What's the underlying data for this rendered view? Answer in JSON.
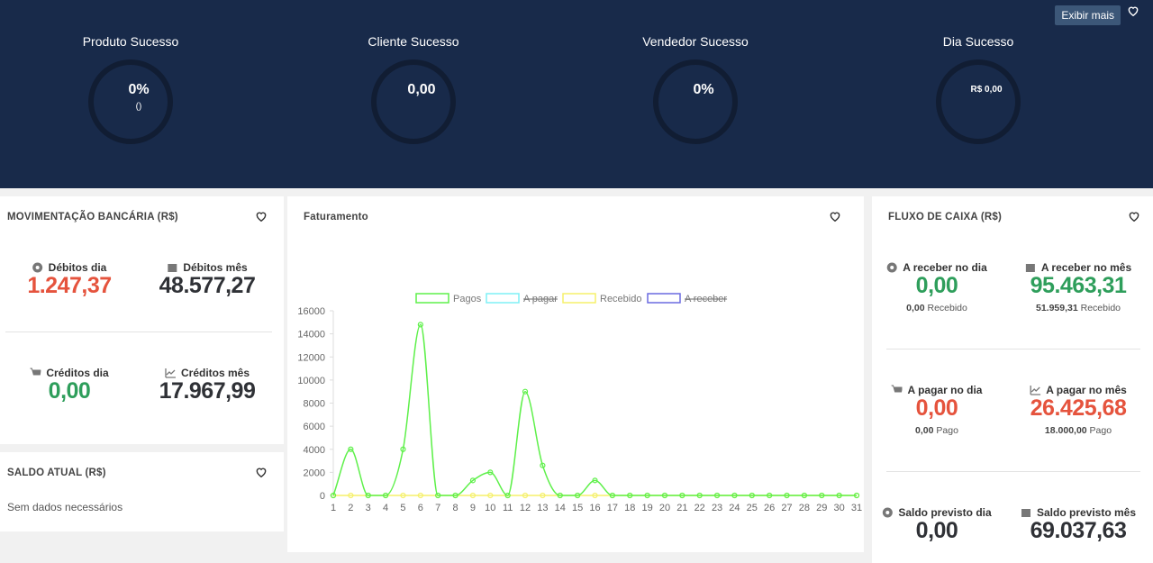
{
  "header": {
    "button": "Exibir mais",
    "gauges": [
      {
        "title": "Produto Sucesso",
        "value": "0%",
        "sub": "()"
      },
      {
        "title": "Cliente Sucesso",
        "value": "0,00"
      },
      {
        "title": "Vendedor Sucesso",
        "value": "0%"
      },
      {
        "title": "Dia Sucesso",
        "value": "R$ 0,00"
      }
    ]
  },
  "movimentacao": {
    "title": "MOVIMENTAÇÃO BANCÁRIA (R$)",
    "items": [
      {
        "label": "Débitos dia",
        "value": "1.247,37",
        "color": "#e5533d"
      },
      {
        "label": "Débitos mês",
        "value": "48.577,27",
        "color": "#2f3136"
      },
      {
        "label": "Créditos dia",
        "value": "0,00",
        "color": "#2e9e5b"
      },
      {
        "label": "Créditos mês",
        "value": "17.967,99",
        "color": "#2f3136"
      }
    ]
  },
  "saldo": {
    "title": "SALDO ATUAL (R$)",
    "text": "Sem dados necessários"
  },
  "fluxo": {
    "title": "FLUXO DE CAIXA (R$)",
    "items": [
      {
        "label": "A receber no dia",
        "value": "0,00",
        "color": "#2e9e5b",
        "sub_value": "0,00",
        "sub_label": "Recebido"
      },
      {
        "label": "A receber no mês",
        "value": "95.463,31",
        "color": "#2e9e5b",
        "sub_value": "51.959,31",
        "sub_label": "Recebido"
      },
      {
        "label": "A pagar no dia",
        "value": "0,00",
        "color": "#e5533d",
        "sub_value": "0,00",
        "sub_label": "Pago"
      },
      {
        "label": "A pagar no mês",
        "value": "26.425,68",
        "color": "#e5533d",
        "sub_value": "18.000,00",
        "sub_label": "Pago"
      },
      {
        "label": "Saldo previsto dia",
        "value": "0,00",
        "color": "#2f3136"
      },
      {
        "label": "Saldo previsto mês",
        "value": "69.037,63",
        "color": "#2f3136"
      }
    ]
  },
  "chart_data": {
    "type": "line",
    "title": "Faturamento",
    "categories": [
      "1",
      "2",
      "3",
      "4",
      "5",
      "6",
      "7",
      "8",
      "9",
      "10",
      "11",
      "12",
      "13",
      "14",
      "15",
      "16",
      "17",
      "18",
      "19",
      "20",
      "21",
      "22",
      "23",
      "24",
      "25",
      "26",
      "27",
      "28",
      "29",
      "30",
      "31"
    ],
    "series": [
      {
        "name": "Pagos",
        "color": "#5ef04a",
        "values": [
          0,
          4000,
          0,
          0,
          4000,
          14800,
          0,
          0,
          1300,
          2000,
          0,
          9000,
          2600,
          0,
          0,
          1300,
          0,
          0,
          0,
          0,
          0,
          0,
          0,
          0,
          0,
          0,
          0,
          0,
          0,
          0,
          0
        ]
      },
      {
        "name": "A pagar",
        "color": "#7ff0f5",
        "hidden": true
      },
      {
        "name": "Recebido",
        "color": "#f5f06a",
        "values": [
          0,
          0,
          0,
          0,
          0,
          0,
          0,
          0,
          0,
          0,
          0,
          0,
          0,
          0,
          0,
          0,
          0,
          0,
          0,
          0,
          0,
          0,
          0,
          0,
          0,
          0,
          0,
          0,
          0,
          0,
          0
        ]
      },
      {
        "name": "A receber",
        "color": "#6a6ae0",
        "hidden": true
      }
    ],
    "ylim": [
      0,
      16000
    ],
    "yticks": [
      0,
      2000,
      4000,
      6000,
      8000,
      10000,
      12000,
      14000,
      16000
    ],
    "grid": false
  }
}
